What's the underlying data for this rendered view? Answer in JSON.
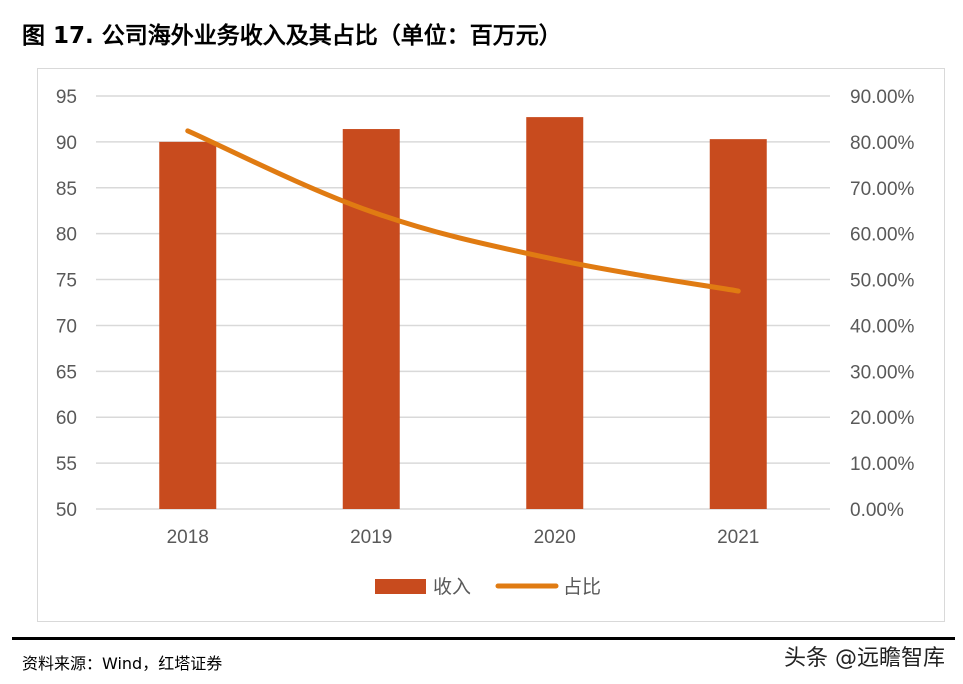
{
  "title": "图 17. 公司海外业务收入及其占比（单位：百万元）",
  "source": "资料来源：Wind，红塔证券",
  "watermark": "头条 @远瞻智库",
  "chart_data": {
    "type": "bar+line",
    "categories": [
      "2018",
      "2019",
      "2020",
      "2021"
    ],
    "series": [
      {
        "name": "收入",
        "type": "bar",
        "axis": "left",
        "color": "#C84B1E",
        "values": [
          90.0,
          91.4,
          92.7,
          90.3
        ]
      },
      {
        "name": "占比",
        "type": "line",
        "axis": "right",
        "color": "#E07B12",
        "values": [
          82.4,
          64.8,
          54.4,
          47.5
        ]
      }
    ],
    "left_axis": {
      "ylim": [
        50,
        95
      ],
      "ticks": [
        "50",
        "55",
        "60",
        "65",
        "70",
        "75",
        "80",
        "85",
        "90",
        "95"
      ]
    },
    "right_axis": {
      "ylim": [
        0,
        90
      ],
      "unit": "%",
      "ticks": [
        "0.00%",
        "10.00%",
        "20.00%",
        "30.00%",
        "40.00%",
        "50.00%",
        "60.00%",
        "70.00%",
        "80.00%",
        "90.00%"
      ]
    },
    "grid": true,
    "legend_placement": "bottom"
  }
}
